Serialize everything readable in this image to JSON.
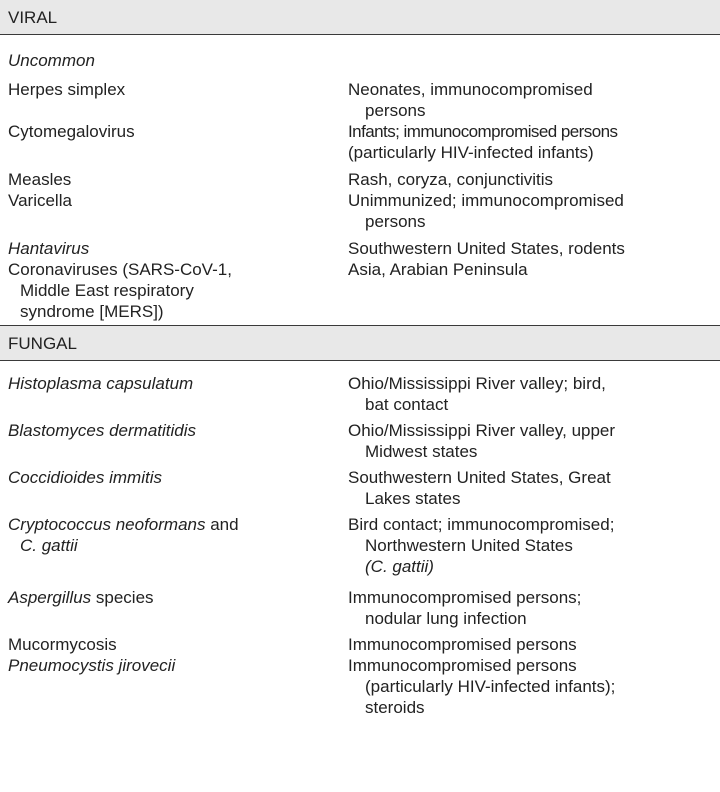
{
  "viral": {
    "header": "VIRAL",
    "subheader": "Uncommon",
    "rows": [
      {
        "organism": [
          "Herpes simplex"
        ],
        "notes": [
          "Neonates, immunocompromised",
          "persons"
        ]
      },
      {
        "organism": [
          "Cytomegalovirus"
        ],
        "notes": [
          "Infants; immunocompromised persons",
          "(particularly HIV-infected infants)"
        ]
      },
      {
        "organism": [
          "Measles"
        ],
        "notes": [
          "Rash, coryza, conjunctivitis"
        ]
      },
      {
        "organism": [
          "Varicella"
        ],
        "notes": [
          "Unimmunized; immunocompromised",
          "persons"
        ]
      },
      {
        "organism": [
          "Hantavirus"
        ],
        "notes": [
          "Southwestern United States, rodents"
        ]
      },
      {
        "organism": [
          "Coronaviruses (SARS-CoV-1,",
          "Middle East respiratory",
          "syndrome [MERS])"
        ],
        "notes": [
          "Asia, Arabian Peninsula"
        ]
      }
    ]
  },
  "fungal": {
    "header": "FUNGAL",
    "rows": [
      {
        "organism": [
          "Histoplasma capsulatum"
        ],
        "notes": [
          "Ohio/Mississippi River valley; bird,",
          "bat contact"
        ]
      },
      {
        "organism": [
          "Blastomyces dermatitidis"
        ],
        "notes": [
          "Ohio/Mississippi River valley, upper",
          "Midwest states"
        ]
      },
      {
        "organism": [
          "Coccidioides immitis"
        ],
        "notes": [
          "Southwestern United States, Great",
          "Lakes states"
        ]
      },
      {
        "organism": [
          "Cryptococcus neoformans",
          " and",
          "C. gattii"
        ],
        "notes": [
          "Bird contact; immunocompromised;",
          "Northwestern United States",
          "(C. gattii)"
        ]
      },
      {
        "organism": [
          "Aspergillus",
          " species"
        ],
        "notes": [
          "Immunocompromised persons;",
          "nodular lung infection"
        ]
      },
      {
        "organism": [
          "Mucormycosis"
        ],
        "notes": [
          "Immunocompromised persons"
        ]
      },
      {
        "organism": [
          "Pneumocystis jirovecii"
        ],
        "notes": [
          "Immunocompromised persons",
          "(particularly HIV-infected infants);",
          "steroids"
        ]
      }
    ]
  }
}
